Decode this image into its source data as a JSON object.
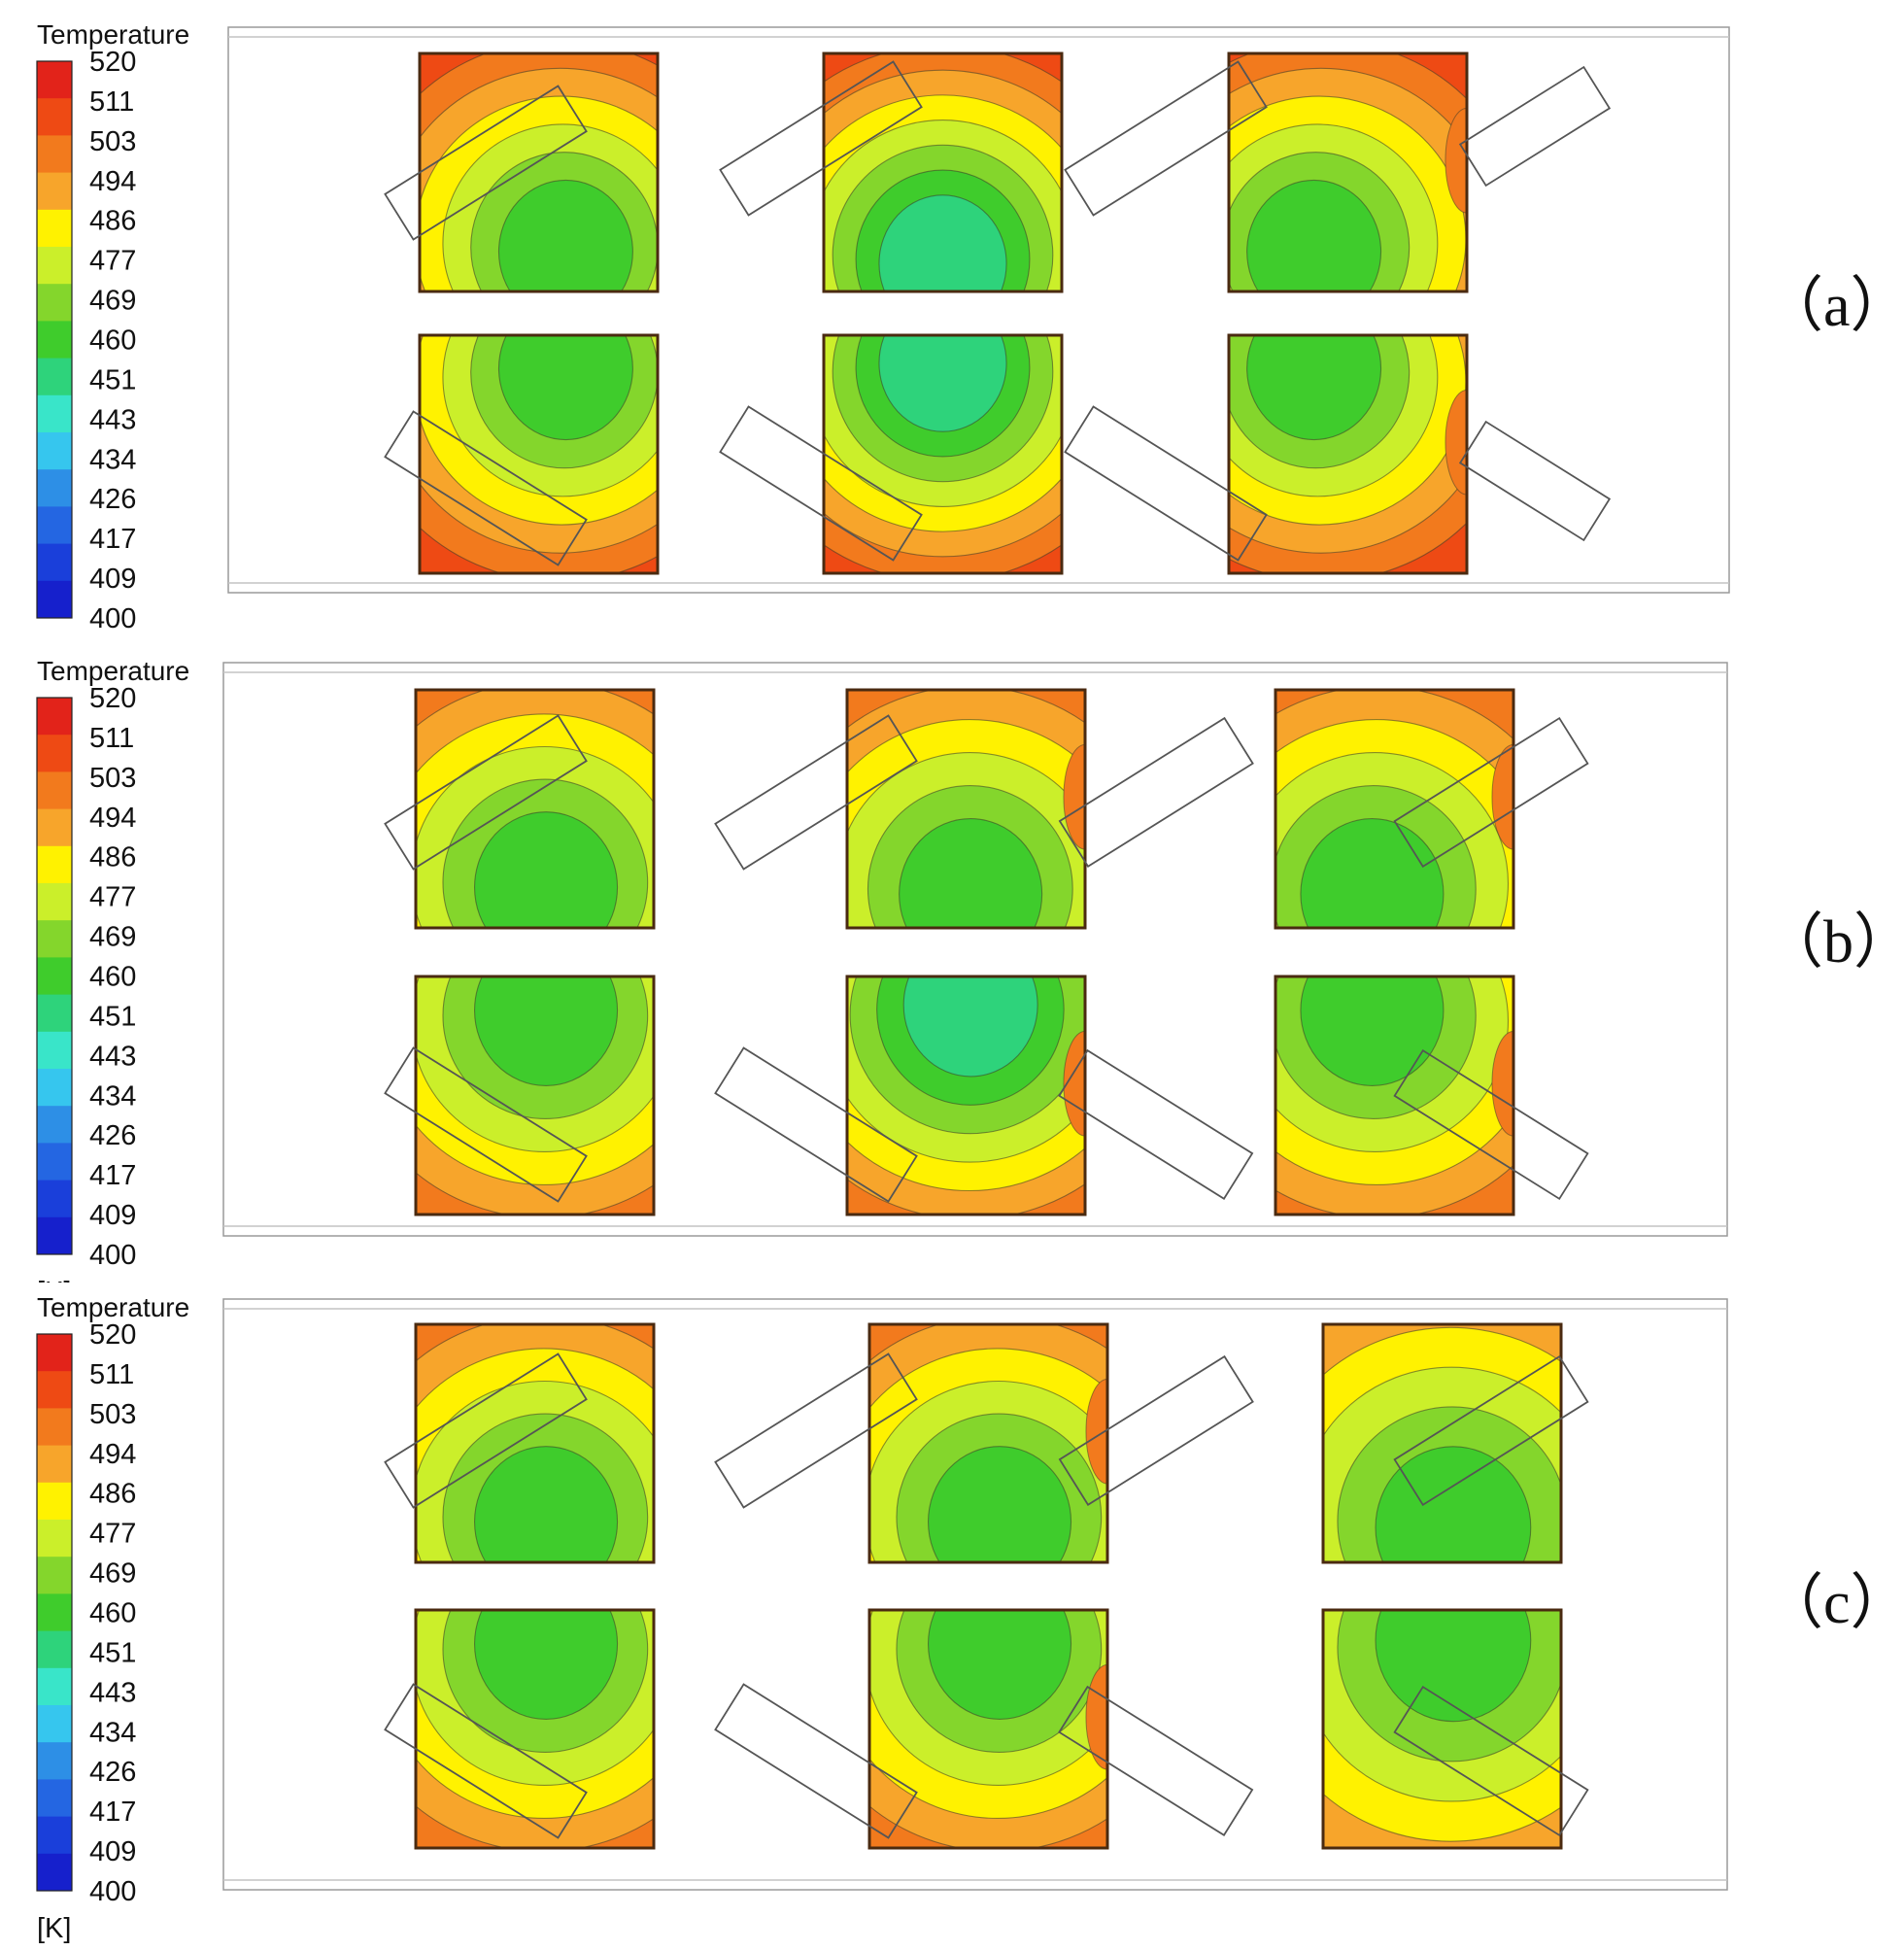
{
  "colorbar": {
    "title": "Temperature",
    "unit": "[K]",
    "ticks": [
      "520",
      "511",
      "503",
      "494",
      "486",
      "477",
      "469",
      "460",
      "451",
      "443",
      "434",
      "426",
      "417",
      "409",
      "400"
    ],
    "colors": [
      "#e2231a",
      "#ee4a14",
      "#f27a1d",
      "#f7a52b",
      "#fff200",
      "#cbef2a",
      "#84d62c",
      "#3fcc2c",
      "#2ed37b",
      "#39e5c9",
      "#36c6ee",
      "#2d8fe6",
      "#2466e2",
      "#1a3fda",
      "#1620cc"
    ]
  },
  "panels": [
    {
      "id": "a",
      "label": "（a）"
    },
    {
      "id": "b",
      "label": "（b）"
    },
    {
      "id": "c",
      "label": "（c）"
    }
  ]
}
